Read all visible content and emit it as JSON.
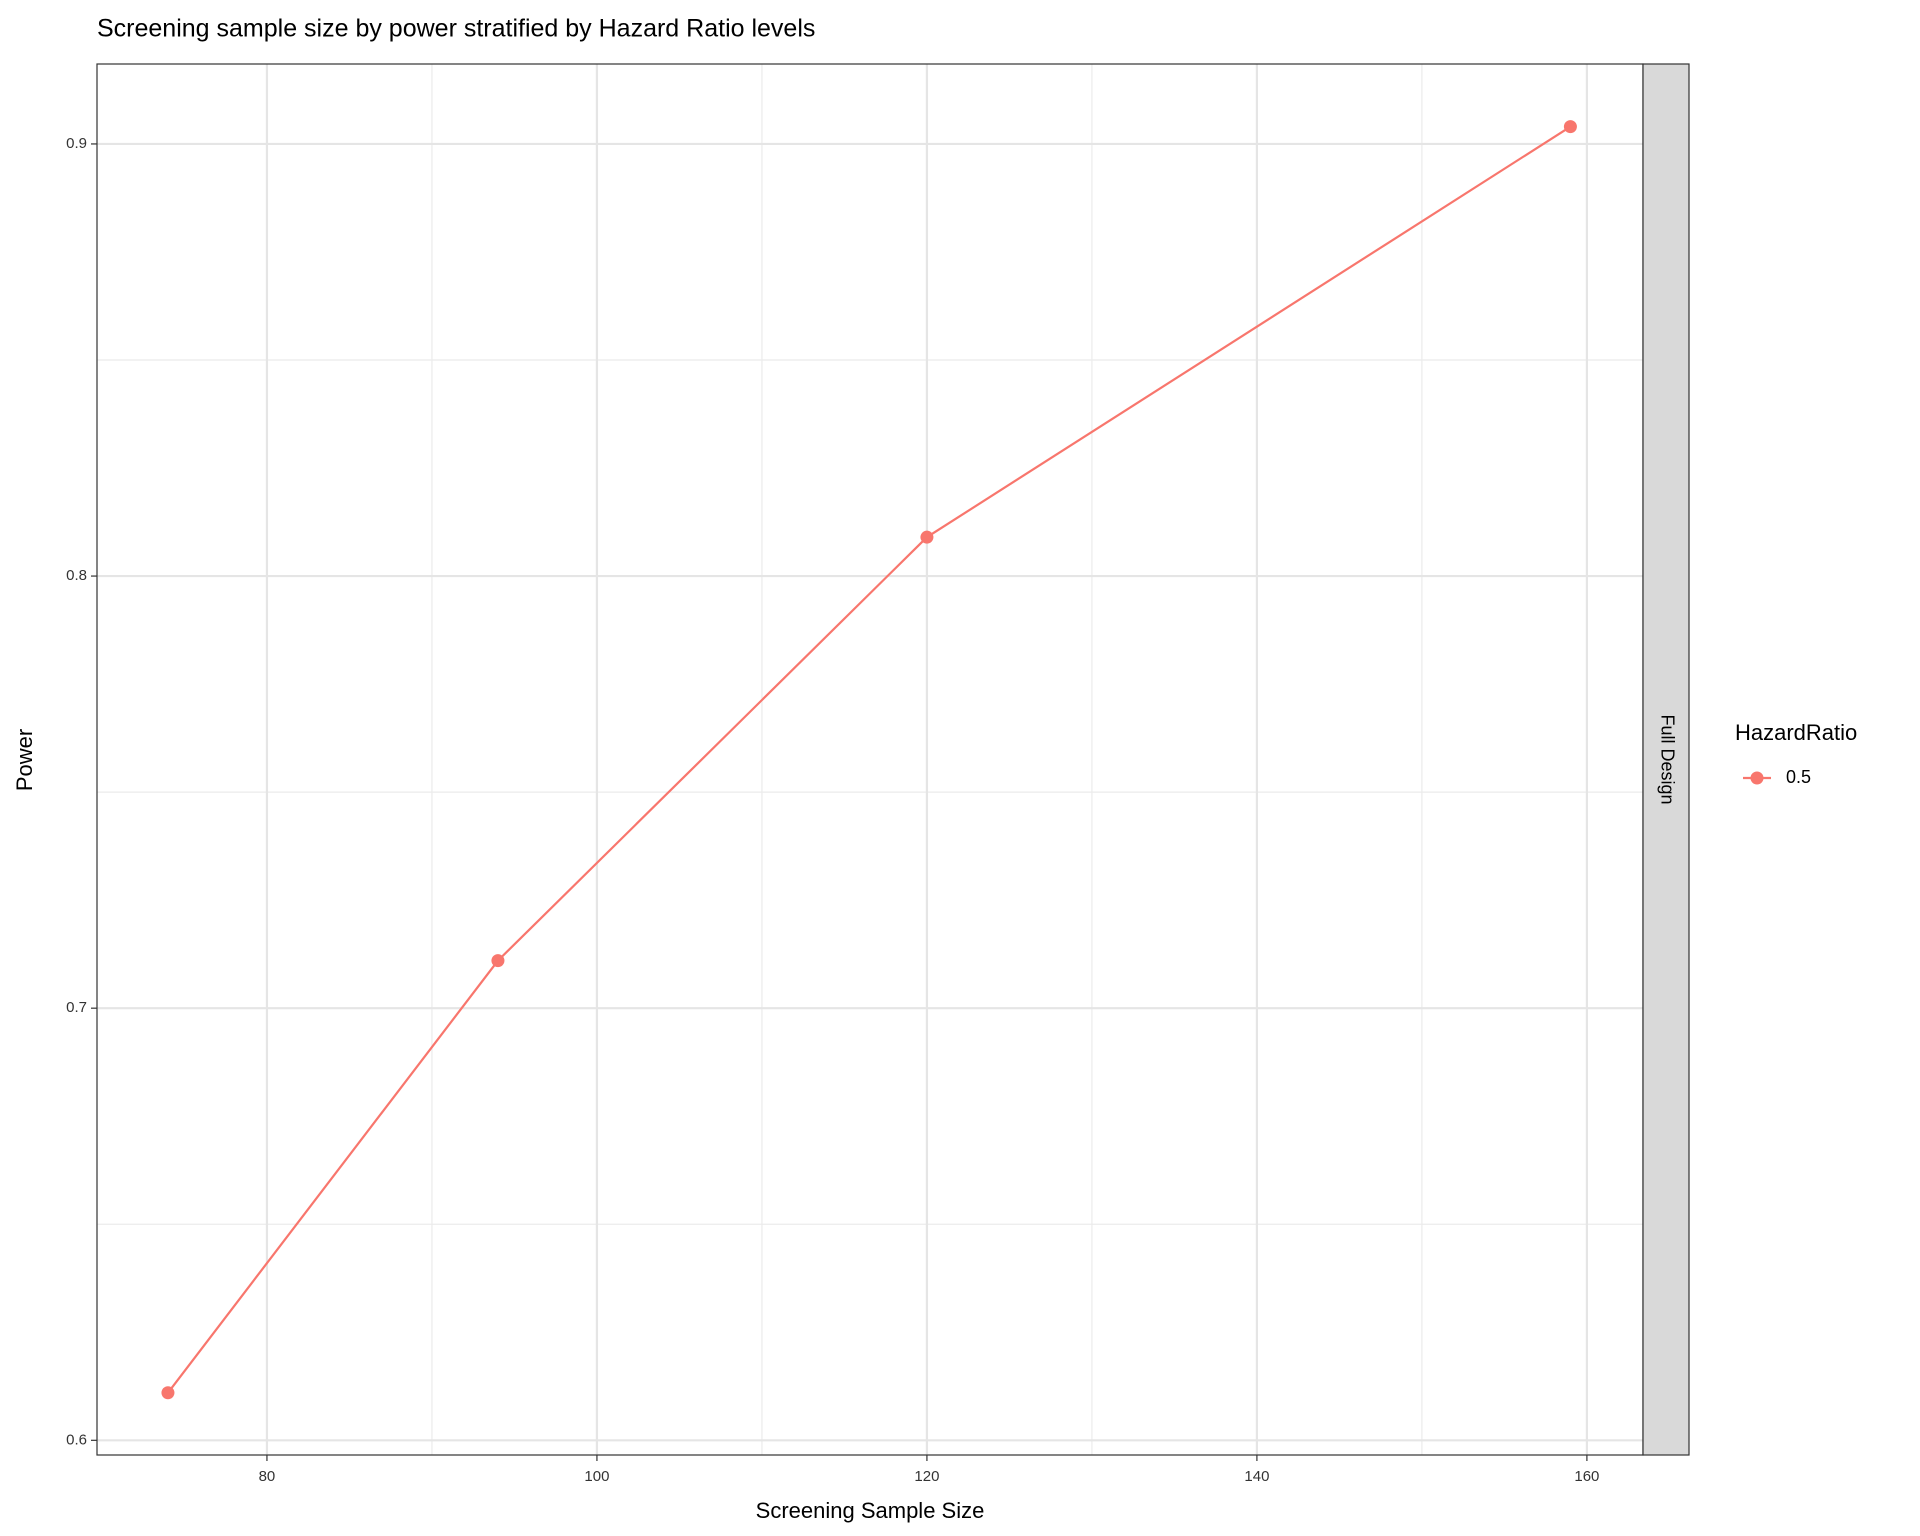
{
  "chart_data": {
    "type": "line",
    "title": "Screening sample size by power stratified by Hazard Ratio levels",
    "x_label": "Screening Sample Size",
    "y_label": "Power",
    "facet_label": "Full Design",
    "legend_title": "HazardRatio",
    "x": [
      74,
      94,
      120,
      159
    ],
    "series": [
      {
        "name": "0.5",
        "color": "#f8766d",
        "values": [
          0.611,
          0.711,
          0.809,
          0.904
        ]
      }
    ],
    "xlim": [
      69.7,
      163.4
    ],
    "xticks": [
      80,
      100,
      120,
      140,
      160
    ],
    "ylim": [
      0.5966,
      0.9185
    ],
    "yticks": [
      0.6,
      0.7,
      0.8,
      0.9
    ],
    "grid": true,
    "legend_position": "right"
  }
}
